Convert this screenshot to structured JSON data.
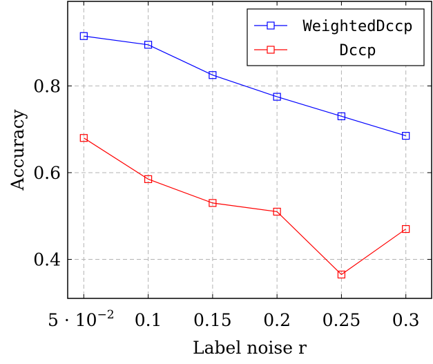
{
  "chart_data": {
    "type": "line",
    "xlabel": "Label noise r",
    "ylabel": "Accuracy",
    "x": [
      0.05,
      0.1,
      0.15,
      0.2,
      0.25,
      0.3
    ],
    "x_tick_labels": [
      "5 · 10−2",
      "0.1",
      "0.15",
      "0.2",
      "0.25",
      "0.3"
    ],
    "y_ticks": [
      0.4,
      0.6,
      0.8
    ],
    "y_tick_labels": [
      "0.4",
      "0.6",
      "0.8"
    ],
    "xlim": [
      0.0375,
      0.32
    ],
    "ylim": [
      0.31,
      0.995
    ],
    "grid": true,
    "legend_position": "top-right",
    "series": [
      {
        "name": "WeightedDccp",
        "color": "#0000ff",
        "marker": "square",
        "values": [
          0.915,
          0.895,
          0.825,
          0.775,
          0.73,
          0.685
        ]
      },
      {
        "name": "Dccp",
        "color": "#ff0000",
        "marker": "square",
        "values": [
          0.68,
          0.585,
          0.53,
          0.51,
          0.365,
          0.47
        ]
      }
    ]
  }
}
